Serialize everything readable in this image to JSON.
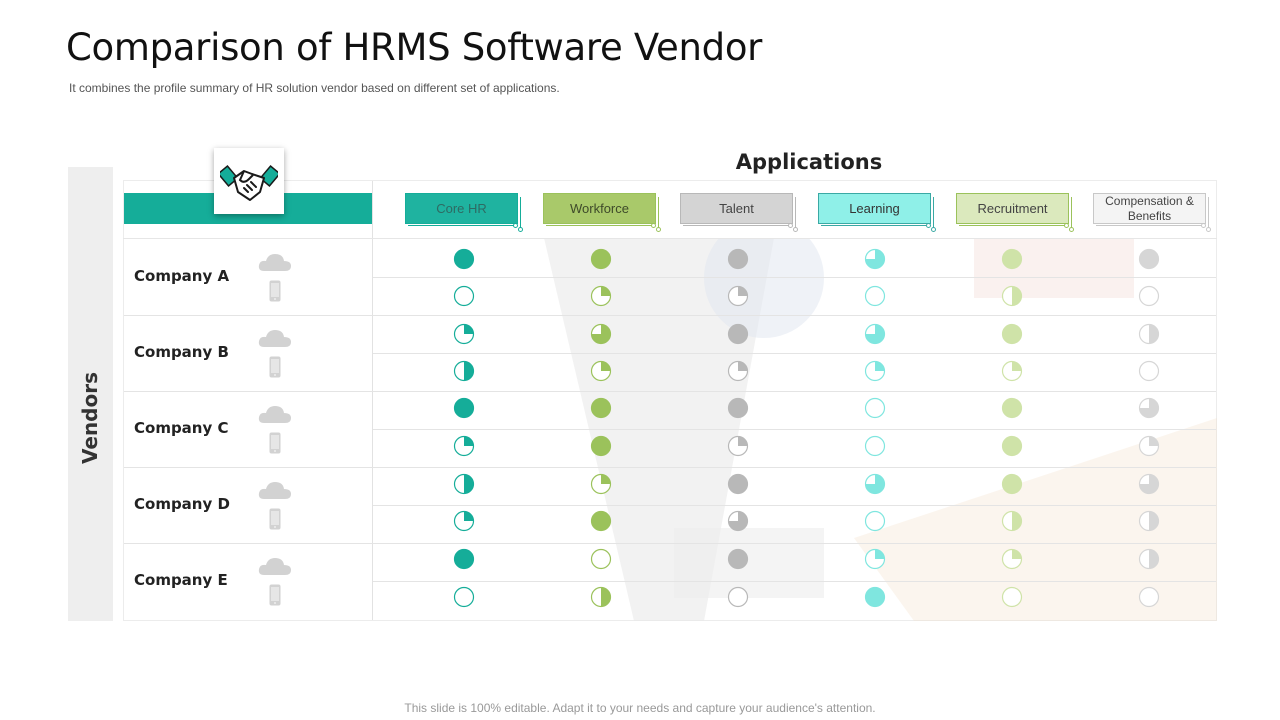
{
  "slide": {
    "title": "Comparison of HRMS Software Vendor",
    "subtitle": "It combines the profile  summary of HR solution vendor  based on different  set of  applications.",
    "footer": "This slide is 100% editable. Adapt it to your needs and capture your audience's attention."
  },
  "colors": {
    "teal": "#15ad99",
    "green": "#9bc25b",
    "gray": "#b8b8b8",
    "aqua": "#7fe6df",
    "light_green": "#cfe3a8",
    "light_gray": "#d6d6d6"
  },
  "vendors_label": "Vendors",
  "applications_label": "Applications",
  "applications": [
    {
      "label": "Core HR",
      "color": "#15ad99",
      "fill": "#1fb3a0",
      "text_color": "#2e6b63"
    },
    {
      "label": "Workforce",
      "color": "#9bc25b",
      "fill": "#a9c96a",
      "text_color": "#3e4a2a"
    },
    {
      "label": "Talent",
      "color": "#b8b8b8",
      "fill": "#d4d4d4",
      "text_color": "#444444"
    },
    {
      "label": "Learning",
      "color": "#3aa9a4",
      "fill": "#8ff0e8",
      "text_color": "#333333"
    },
    {
      "label": "Recruitment",
      "color": "#9bc25b",
      "fill": "#dbe9bd",
      "text_color": "#444444"
    },
    {
      "label": "Compensation & Benefits",
      "color": "#c8c8c8",
      "fill": "#f4f4f4",
      "text_color": "#444444"
    }
  ],
  "dot_colors": [
    "#15ad99",
    "#9bc25b",
    "#b8b8b8",
    "#7fe6df",
    "#cfe3a8",
    "#d6d6d6"
  ],
  "companies": [
    {
      "name": "Company A",
      "icons": [
        "cloud-icon",
        "phone-icon"
      ]
    },
    {
      "name": "Company B",
      "icons": [
        "cloud-icon",
        "phone-icon"
      ]
    },
    {
      "name": "Company C",
      "icons": [
        "cloud-icon",
        "phone-icon"
      ]
    },
    {
      "name": "Company D",
      "icons": [
        "cloud-icon",
        "phone-icon"
      ]
    },
    {
      "name": "Company E",
      "icons": [
        "cloud-icon",
        "phone-icon"
      ]
    }
  ],
  "ratings_note_unit": "fraction of circle filled (harvey ball)",
  "ratings": [
    [
      1,
      1,
      1,
      0.75,
      1,
      1
    ],
    [
      0,
      0.25,
      0.25,
      0,
      0.5,
      0
    ],
    [
      0.25,
      0.75,
      1,
      0.75,
      1,
      0.5
    ],
    [
      0.5,
      0.25,
      0.25,
      0.25,
      0.25,
      0
    ],
    [
      1,
      1,
      1,
      0,
      1,
      0.75
    ],
    [
      0.25,
      1,
      0.25,
      0,
      1,
      0.25
    ],
    [
      0.5,
      0.25,
      1,
      0.75,
      1,
      0.75
    ],
    [
      0.25,
      1,
      0.75,
      0,
      0.5,
      0.5
    ],
    [
      1,
      0,
      1,
      0.25,
      0.25,
      0.5
    ],
    [
      0,
      0.5,
      0,
      1,
      0,
      0
    ]
  ]
}
